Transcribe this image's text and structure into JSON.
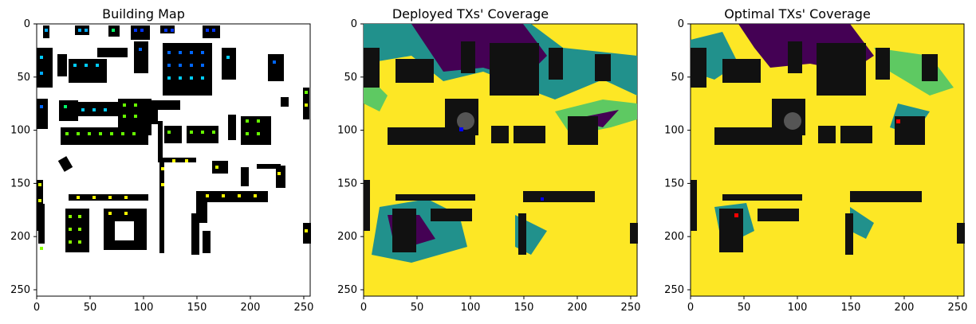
{
  "figure": {
    "panels": [
      {
        "title": "Building Map",
        "x_ticks": [
          "0",
          "50",
          "100",
          "150",
          "200",
          "250"
        ],
        "y_ticks": [
          "0",
          "50",
          "100",
          "150",
          "200",
          "250"
        ],
        "image_kind": "building-map",
        "colors": {
          "background": "#ffffff",
          "building": "#000000"
        }
      },
      {
        "title": "Deployed TXs' Coverage",
        "x_ticks": [
          "0",
          "50",
          "100",
          "150",
          "200",
          "250"
        ],
        "y_ticks": [
          "0",
          "50",
          "100",
          "150",
          "200",
          "250"
        ],
        "image_kind": "coverage-map",
        "tx_marker_color": "#0000ff",
        "colors": {
          "high": "#fde725",
          "mid_high": "#5ec962",
          "mid": "#21918c",
          "low": "#440154",
          "building": "#111111"
        }
      },
      {
        "title": "Optimal TXs' Coverage",
        "x_ticks": [
          "0",
          "50",
          "100",
          "150",
          "200",
          "250"
        ],
        "y_ticks": [
          "0",
          "50",
          "100",
          "150",
          "200",
          "250"
        ],
        "image_kind": "coverage-map",
        "tx_marker_color": "#ff0000",
        "colors": {
          "high": "#fde725",
          "mid_high": "#5ec962",
          "mid": "#21918c",
          "low": "#440154",
          "building": "#111111"
        }
      }
    ]
  }
}
